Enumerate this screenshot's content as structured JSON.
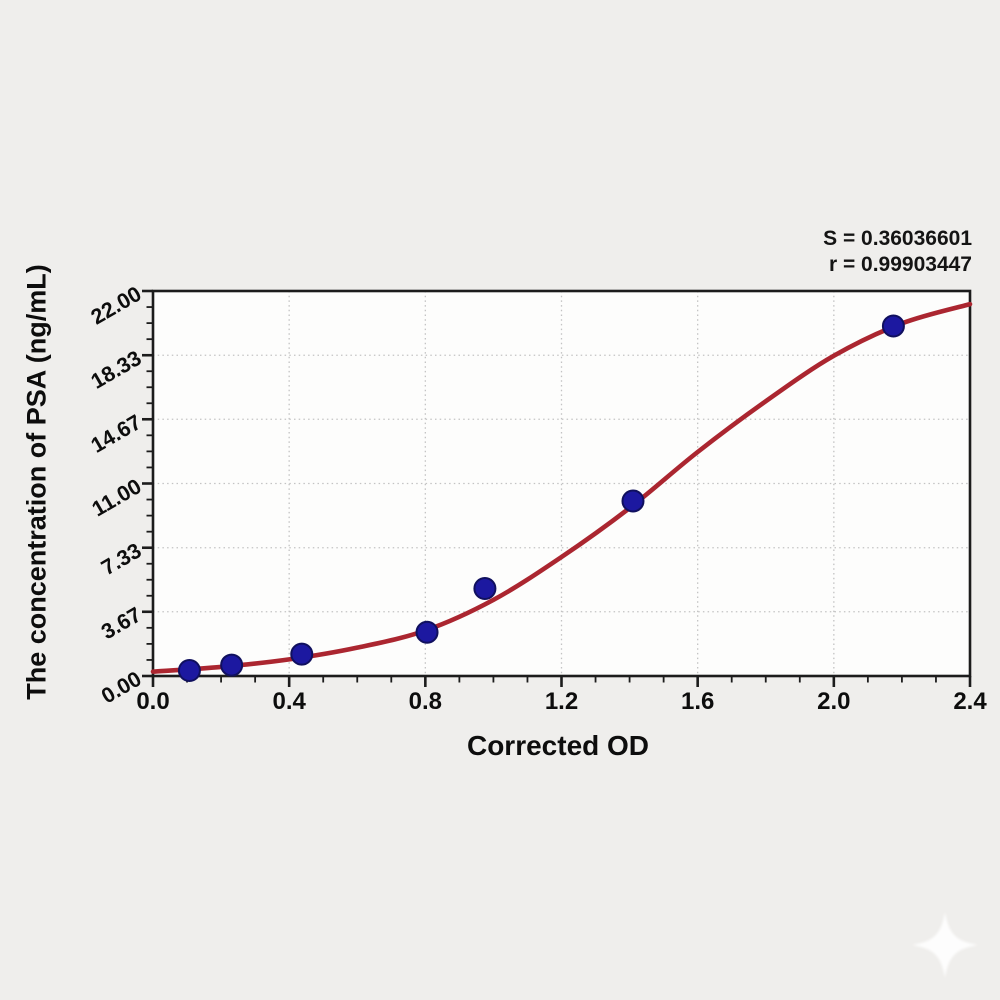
{
  "figure": {
    "background_color": "#efeeec",
    "plot_background_color": "#fdfdfc",
    "frame_color": "#1c1c1c",
    "watermark_icon": "four-point-sparkle"
  },
  "annotation": {
    "line1": "S = 0.36036601",
    "line2": "r = 0.99903447"
  },
  "chart_data": {
    "type": "scatter",
    "title": "",
    "xlabel": "Corrected OD",
    "ylabel": "The concentration of PSA (ng/mL)",
    "xlim": [
      0.0,
      2.4
    ],
    "ylim": [
      0.0,
      22.0
    ],
    "x_ticks": [
      0.0,
      0.4,
      0.8,
      1.2,
      1.6,
      2.0,
      2.4
    ],
    "x_tick_labels": [
      "0.0",
      "0.4",
      "0.8",
      "1.2",
      "1.6",
      "2.0",
      "2.4"
    ],
    "y_ticks": [
      0.0,
      3.67,
      7.33,
      11.0,
      14.67,
      18.33,
      22.0
    ],
    "y_tick_labels": [
      "0.00",
      "3.67",
      "7.33",
      "11.00",
      "14.67",
      "18.33",
      "22.00"
    ],
    "minor_tick_subdivisions": 4,
    "grid": {
      "style": "dotted",
      "color": "#c3c3c3",
      "at": "major-ticks-interior"
    },
    "legend": "none",
    "stats": {
      "S": 0.36036601,
      "r": 0.99903447
    },
    "series": [
      {
        "name": "standard-points",
        "type": "scatter",
        "color": "#1c18a0",
        "edge_color": "#10105e",
        "points": [
          [
            0.107,
            0.313
          ],
          [
            0.231,
            0.625
          ],
          [
            0.437,
            1.25
          ],
          [
            0.805,
            2.5
          ],
          [
            0.975,
            5.0
          ],
          [
            1.41,
            10.0
          ],
          [
            2.175,
            20.0
          ]
        ]
      },
      {
        "name": "4pl-fit-curve",
        "type": "line",
        "color": "#ab2630",
        "points": [
          [
            0.0,
            0.25
          ],
          [
            0.2,
            0.52
          ],
          [
            0.4,
            0.95
          ],
          [
            0.6,
            1.62
          ],
          [
            0.8,
            2.6
          ],
          [
            1.0,
            4.35
          ],
          [
            1.2,
            6.8
          ],
          [
            1.4,
            9.6
          ],
          [
            1.6,
            12.8
          ],
          [
            1.8,
            15.7
          ],
          [
            2.0,
            18.3
          ],
          [
            2.2,
            20.15
          ],
          [
            2.4,
            21.25
          ]
        ]
      }
    ]
  }
}
